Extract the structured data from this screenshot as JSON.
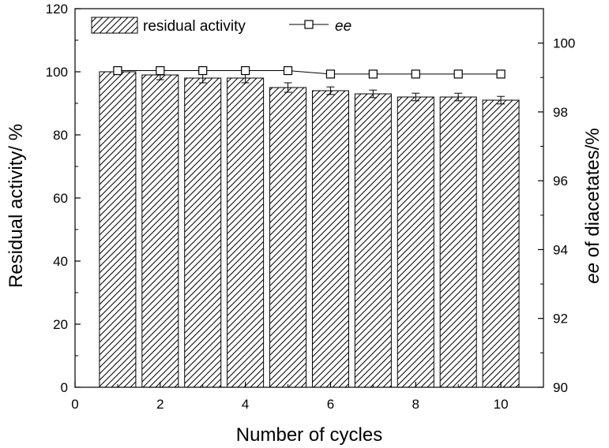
{
  "chart_data": {
    "type": "bar",
    "x": [
      1,
      2,
      3,
      4,
      5,
      6,
      7,
      8,
      9,
      10
    ],
    "xlabel": "Number of cycles",
    "xlim": [
      0,
      11
    ],
    "xticks": [
      0,
      2,
      4,
      6,
      8,
      10
    ],
    "xtick_labels": [
      "0",
      "2",
      "4",
      "6",
      "8",
      "10"
    ],
    "ylabel": "Residual activity/ %",
    "ylim": [
      0,
      120
    ],
    "yticks": [
      0,
      20,
      40,
      60,
      80,
      100,
      120
    ],
    "ytick_labels": [
      "0",
      "20",
      "40",
      "60",
      "80",
      "100",
      "120"
    ],
    "y2label_italic": "ee",
    "y2label_rest": " of diacetates/%",
    "y2lim": [
      90,
      101
    ],
    "y2ticks": [
      90,
      92,
      94,
      96,
      98,
      100
    ],
    "y2tick_labels": [
      "90",
      "92",
      "94",
      "96",
      "98",
      "100"
    ],
    "grid": false,
    "legend_position": "top-left",
    "series": [
      {
        "name": "residual activity",
        "kind": "bar",
        "axis": "left",
        "pattern": "diagonal-hatch",
        "values": [
          100,
          99,
          98,
          98,
          95,
          94,
          93,
          92,
          92,
          91
        ],
        "errors": [
          0.5,
          1.5,
          1.5,
          1.5,
          1.5,
          1.2,
          1.2,
          1.2,
          1.2,
          1.2
        ]
      },
      {
        "name": "ee",
        "kind": "line",
        "axis": "right",
        "marker": "open-square",
        "values": [
          99.2,
          99.2,
          99.2,
          99.2,
          99.2,
          99.1,
          99.1,
          99.1,
          99.1,
          99.1
        ]
      }
    ],
    "colors": {
      "ink": "#000000",
      "background": "#ffffff"
    }
  }
}
